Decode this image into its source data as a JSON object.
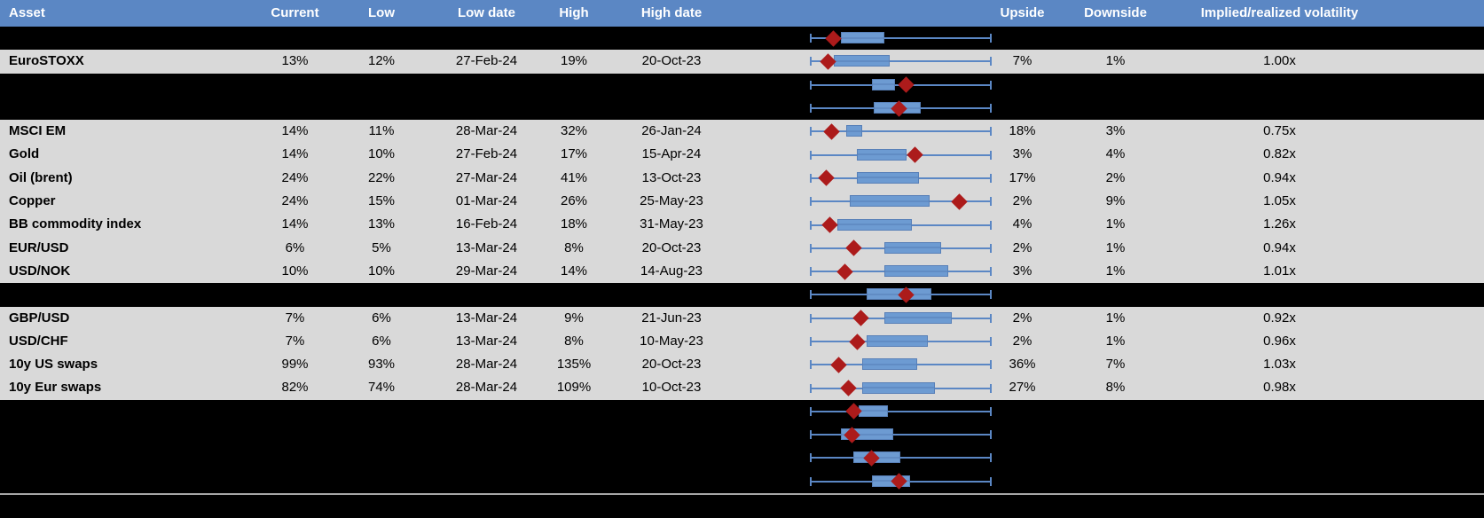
{
  "colors": {
    "header_bg": "#5B87C4",
    "row_bg": "#D9D9D9",
    "hidden_bg": "#000000",
    "whisker": "#5B87C4",
    "box_fill": "#6D9BD2",
    "box_border": "#5880B8",
    "diamond": "#AC1B1B",
    "separator": "#FFFFFF",
    "bottom_line": "#A6A6A6"
  },
  "header": {
    "columns": [
      {
        "label": "Asset"
      },
      {
        "label": "Current"
      },
      {
        "label": "Low"
      },
      {
        "label": "Low date"
      },
      {
        "label": "High"
      },
      {
        "label": "High date"
      },
      {
        "label": ""
      },
      {
        "label": "Upside"
      },
      {
        "label": "Downside"
      },
      {
        "label": "Implied/realized volatility"
      },
      {
        "label": ""
      }
    ]
  },
  "rows": [
    {
      "type": "hidden",
      "asset": "",
      "current": "",
      "low": "",
      "low_date": "",
      "high": "",
      "high_date": "",
      "upside": "",
      "downside": "",
      "implied": "",
      "plot": {
        "diamond": 0.13,
        "box_start": 0.17,
        "box_end": 0.41
      }
    },
    {
      "type": "data",
      "asset": "EuroSTOXX",
      "current": "13%",
      "low": "12%",
      "low_date": "27-Feb-24",
      "high": "19%",
      "high_date": "20-Oct-23",
      "upside": "7%",
      "downside": "1%",
      "implied": "1.00x",
      "plot": {
        "diamond": 0.1,
        "box_start": 0.13,
        "box_end": 0.44
      }
    },
    {
      "type": "hidden",
      "asset": "",
      "current": "",
      "low": "",
      "low_date": "",
      "high": "",
      "high_date": "",
      "upside": "",
      "downside": "",
      "implied": "",
      "plot": {
        "diamond": 0.53,
        "box_start": 0.34,
        "box_end": 0.47
      }
    },
    {
      "type": "hidden",
      "asset": "",
      "current": "",
      "low": "",
      "low_date": "",
      "high": "",
      "high_date": "",
      "upside": "",
      "downside": "",
      "implied": "",
      "plot": {
        "diamond": 0.49,
        "box_start": 0.35,
        "box_end": 0.61
      }
    },
    {
      "type": "data",
      "asset": "MSCI EM",
      "current": "14%",
      "low": "11%",
      "low_date": "28-Mar-24",
      "high": "32%",
      "high_date": "26-Jan-24",
      "upside": "18%",
      "downside": "3%",
      "implied": "0.75x",
      "plot": {
        "diamond": 0.12,
        "box_start": 0.2,
        "box_end": 0.29
      }
    },
    {
      "type": "data",
      "asset": "Gold",
      "current": "14%",
      "low": "10%",
      "low_date": "27-Feb-24",
      "high": "17%",
      "high_date": "15-Apr-24",
      "upside": "3%",
      "downside": "4%",
      "implied": "0.82x",
      "plot": {
        "diamond": 0.58,
        "box_start": 0.26,
        "box_end": 0.53
      }
    },
    {
      "type": "data",
      "asset": "Oil (brent)",
      "current": "24%",
      "low": "22%",
      "low_date": "27-Mar-24",
      "high": "41%",
      "high_date": "13-Oct-23",
      "upside": "17%",
      "downside": "2%",
      "implied": "0.94x",
      "plot": {
        "diamond": 0.09,
        "box_start": 0.26,
        "box_end": 0.6
      }
    },
    {
      "type": "data",
      "asset": "Copper",
      "current": "24%",
      "low": "15%",
      "low_date": "01-Mar-24",
      "high": "26%",
      "high_date": "25-May-23",
      "upside": "2%",
      "downside": "9%",
      "implied": "1.05x",
      "plot": {
        "diamond": 0.82,
        "box_start": 0.22,
        "box_end": 0.66
      }
    },
    {
      "type": "data",
      "asset": "BB commodity index",
      "current": "14%",
      "low": "13%",
      "low_date": "16-Feb-24",
      "high": "18%",
      "high_date": "31-May-23",
      "upside": "4%",
      "downside": "1%",
      "implied": "1.26x",
      "plot": {
        "diamond": 0.11,
        "box_start": 0.15,
        "box_end": 0.56
      }
    },
    {
      "type": "data",
      "asset": "EUR/USD",
      "current": "6%",
      "low": "5%",
      "low_date": "13-Mar-24",
      "high": "8%",
      "high_date": "20-Oct-23",
      "upside": "2%",
      "downside": "1%",
      "implied": "0.94x",
      "plot": {
        "diamond": 0.24,
        "box_start": 0.41,
        "box_end": 0.72
      }
    },
    {
      "type": "data",
      "asset": "USD/NOK",
      "current": "10%",
      "low": "10%",
      "low_date": "29-Mar-24",
      "high": "14%",
      "high_date": "14-Aug-23",
      "upside": "3%",
      "downside": "1%",
      "implied": "1.01x",
      "plot": {
        "diamond": 0.19,
        "box_start": 0.41,
        "box_end": 0.76
      }
    },
    {
      "type": "hidden",
      "asset": "",
      "current": "",
      "low": "",
      "low_date": "",
      "high": "",
      "high_date": "",
      "upside": "",
      "downside": "",
      "implied": "",
      "plot": {
        "diamond": 0.53,
        "box_start": 0.31,
        "box_end": 0.67
      }
    },
    {
      "type": "data",
      "asset": "GBP/USD",
      "current": "7%",
      "low": "6%",
      "low_date": "13-Mar-24",
      "high": "9%",
      "high_date": "21-Jun-23",
      "upside": "2%",
      "downside": "1%",
      "implied": "0.92x",
      "plot": {
        "diamond": 0.28,
        "box_start": 0.41,
        "box_end": 0.78
      }
    },
    {
      "type": "data",
      "asset": "USD/CHF",
      "current": "7%",
      "low": "6%",
      "low_date": "13-Mar-24",
      "high": "8%",
      "high_date": "10-May-23",
      "upside": "2%",
      "downside": "1%",
      "implied": "0.96x",
      "plot": {
        "diamond": 0.26,
        "box_start": 0.31,
        "box_end": 0.65
      }
    },
    {
      "type": "data",
      "asset": "10y US swaps",
      "current": "99%",
      "low": "93%",
      "low_date": "28-Mar-24",
      "high": "135%",
      "high_date": "20-Oct-23",
      "upside": "36%",
      "downside": "7%",
      "implied": "1.03x",
      "plot": {
        "diamond": 0.16,
        "box_start": 0.29,
        "box_end": 0.59
      }
    },
    {
      "type": "data",
      "asset": "10y Eur swaps",
      "current": "82%",
      "low": "74%",
      "low_date": "28-Mar-24",
      "high": "109%",
      "high_date": "10-Oct-23",
      "upside": "27%",
      "downside": "8%",
      "implied": "0.98x",
      "plot": {
        "diamond": 0.21,
        "box_start": 0.29,
        "box_end": 0.69
      }
    },
    {
      "type": "hidden",
      "asset": "",
      "current": "",
      "low": "",
      "low_date": "",
      "high": "",
      "high_date": "",
      "upside": "",
      "downside": "",
      "implied": "",
      "plot": {
        "diamond": 0.24,
        "box_start": 0.27,
        "box_end": 0.43
      }
    },
    {
      "type": "hidden",
      "asset": "",
      "current": "",
      "low": "",
      "low_date": "",
      "high": "",
      "high_date": "",
      "upside": "",
      "downside": "",
      "implied": "",
      "plot": {
        "diamond": 0.23,
        "box_start": 0.17,
        "box_end": 0.46
      }
    },
    {
      "type": "hidden",
      "asset": "",
      "current": "",
      "low": "",
      "low_date": "",
      "high": "",
      "high_date": "",
      "upside": "",
      "downside": "",
      "implied": "",
      "plot": {
        "diamond": 0.34,
        "box_start": 0.24,
        "box_end": 0.5
      }
    },
    {
      "type": "hidden",
      "asset": "",
      "current": "",
      "low": "",
      "low_date": "",
      "high": "",
      "high_date": "",
      "upside": "",
      "downside": "",
      "implied": "",
      "plot": {
        "diamond": 0.49,
        "box_start": 0.34,
        "box_end": 0.55
      }
    }
  ],
  "layout_note": "",
  "chart_data": {
    "type": "table",
    "columns": [
      "Asset",
      "Current",
      "Low",
      "Low date",
      "High",
      "High date",
      "Upside",
      "Downside",
      "Implied/realized volatility"
    ],
    "note": "Each row includes a min-max whisker box plot (normalized 0-1) with a red diamond marking current level; see rows[].plot"
  }
}
